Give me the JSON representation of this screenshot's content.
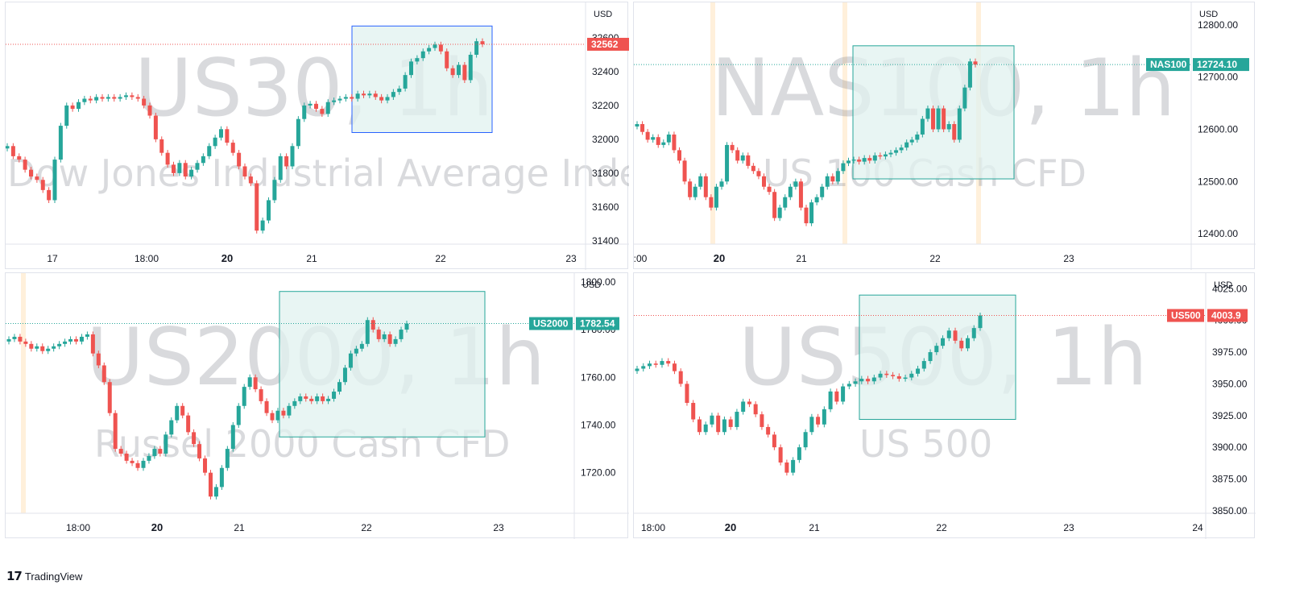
{
  "footer": {
    "logo_icon": "tradingview-logo-icon",
    "brand": "TradingView"
  },
  "colors": {
    "up": "#26a69a",
    "down": "#ef5350",
    "box_fill": "#e0f2ef",
    "box_border": "#26a69a",
    "box_border_alt": "#2962ff",
    "highlight": "#ffe9cc"
  },
  "chart_data": [
    {
      "type": "candlestick",
      "title": "US30, 1h",
      "subtitle": "Dow Jones Industrial Average Index",
      "unit": "USD",
      "ylim": [
        31380,
        32800
      ],
      "y_ticks": [
        "31400",
        "31600",
        "31800",
        "32000",
        "32200",
        "32400",
        "32600"
      ],
      "x_ticks": [
        {
          "label": "17",
          "bold": false
        },
        {
          "label": "18:00",
          "bold": false
        },
        {
          "label": "20",
          "bold": true
        },
        {
          "label": "21",
          "bold": false
        },
        {
          "label": "22",
          "bold": false
        },
        {
          "label": "23",
          "bold": false
        }
      ],
      "last_price": {
        "label": "32562",
        "value": 32562,
        "color": "#ef5350"
      },
      "box": {
        "y_top": 32670,
        "y_bottom": 32040,
        "border": "#2962ff"
      },
      "closes": [
        31960,
        31900,
        31880,
        31820,
        31780,
        31760,
        31700,
        31640,
        31880,
        32080,
        32200,
        32180,
        32220,
        32240,
        32230,
        32250,
        32240,
        32250,
        32240,
        32250,
        32260,
        32250,
        32240,
        32200,
        32140,
        32000,
        31920,
        31850,
        31800,
        31860,
        31780,
        31820,
        31860,
        31900,
        31960,
        32010,
        32060,
        31980,
        31920,
        31840,
        31780,
        31740,
        31460,
        31520,
        31640,
        31760,
        31900,
        31840,
        31960,
        32120,
        32200,
        32210,
        32180,
        32150,
        32220,
        32230,
        32240,
        32250,
        32240,
        32270,
        32260,
        32270,
        32250,
        32230,
        32250,
        32280,
        32300,
        32380,
        32460,
        32480,
        32520,
        32540,
        32560,
        32520,
        32420,
        32380,
        32440,
        32350,
        32500,
        32580,
        32562
      ]
    },
    {
      "type": "candlestick",
      "title": "NAS100, 1h",
      "subtitle": "US 100 Cash CFD",
      "unit": "USD",
      "ylim": [
        12380,
        12840
      ],
      "y_ticks": [
        "12400.00",
        "12500.00",
        "12600.00",
        "12700.00",
        "12800.00"
      ],
      "x_ticks": [
        {
          "label": ":00",
          "bold": false
        },
        {
          "label": "20",
          "bold": true
        },
        {
          "label": "21",
          "bold": false
        },
        {
          "label": "22",
          "bold": false
        },
        {
          "label": "23",
          "bold": false
        }
      ],
      "last_price": {
        "label": "12724.10",
        "value": 12724.1,
        "color": "#26a69a",
        "symbol": "NAS100"
      },
      "box": {
        "y_top": 12760,
        "y_bottom": 12505,
        "border": "#26a69a"
      },
      "highlights": [
        0.125,
        0.33,
        0.55,
        0.54
      ],
      "closes": [
        12610,
        12595,
        12580,
        12585,
        12570,
        12575,
        12590,
        12560,
        12540,
        12500,
        12470,
        12490,
        12510,
        12470,
        12450,
        12490,
        12500,
        12570,
        12560,
        12540,
        12550,
        12530,
        12520,
        12510,
        12490,
        12480,
        12430,
        12450,
        12470,
        12490,
        12500,
        12450,
        12420,
        12460,
        12470,
        12490,
        12510,
        12500,
        12520,
        12535,
        12540,
        12542,
        12538,
        12545,
        12540,
        12550,
        12548,
        12552,
        12555,
        12560,
        12565,
        12575,
        12580,
        12590,
        12620,
        12640,
        12600,
        12640,
        12600,
        12610,
        12580,
        12640,
        12680,
        12730,
        12724
      ]
    },
    {
      "type": "candlestick",
      "title": "US2000, 1h",
      "subtitle": "Russel 2000 Cash CFD",
      "unit": "USD",
      "ylim": [
        1703,
        1803
      ],
      "y_ticks": [
        "1720.00",
        "1740.00",
        "1760.00",
        "1780.00",
        "1800.00"
      ],
      "x_ticks": [
        {
          "label": "18:00",
          "bold": false
        },
        {
          "label": "20",
          "bold": true
        },
        {
          "label": "21",
          "bold": false
        },
        {
          "label": "22",
          "bold": false
        },
        {
          "label": "23",
          "bold": false
        }
      ],
      "last_price": {
        "label": "1782.54",
        "value": 1782.54,
        "color": "#26a69a",
        "symbol": "US2000"
      },
      "box": {
        "y_top": 1796,
        "y_bottom": 1735,
        "border": "#26a69a"
      },
      "highlights": [
        0.03
      ],
      "closes": [
        1776,
        1777,
        1775,
        1774,
        1772,
        1773,
        1771,
        1772,
        1773,
        1774,
        1775,
        1776,
        1775,
        1777,
        1778,
        1770,
        1765,
        1758,
        1745,
        1730,
        1728,
        1725,
        1724,
        1722,
        1725,
        1727,
        1730,
        1728,
        1736,
        1742,
        1748,
        1744,
        1737,
        1732,
        1726,
        1720,
        1710,
        1714,
        1722,
        1730,
        1740,
        1748,
        1756,
        1760,
        1755,
        1750,
        1745,
        1742,
        1746,
        1744,
        1748,
        1750,
        1752,
        1751,
        1750,
        1752,
        1750,
        1751,
        1754,
        1758,
        1764,
        1770,
        1772,
        1774,
        1784,
        1780,
        1776,
        1778,
        1774,
        1776,
        1780,
        1782.54
      ]
    },
    {
      "type": "candlestick",
      "title": "US500, 1h",
      "subtitle": "US 500",
      "unit": "USD",
      "ylim": [
        3848,
        4036
      ],
      "y_ticks": [
        "3850.00",
        "3875.00",
        "3900.00",
        "3925.00",
        "3950.00",
        "3975.00",
        "4000.00",
        "4025.00"
      ],
      "x_ticks": [
        {
          "label": "18:00",
          "bold": false
        },
        {
          "label": "20",
          "bold": true
        },
        {
          "label": "21",
          "bold": false
        },
        {
          "label": "22",
          "bold": false
        },
        {
          "label": "23",
          "bold": false
        },
        {
          "label": "24",
          "bold": false
        }
      ],
      "last_price": {
        "label": "4003.9",
        "value": 4003.9,
        "color": "#ef5350",
        "symbol": "US500"
      },
      "box": {
        "y_top": 4020,
        "y_bottom": 3922,
        "border": "#26a69a"
      },
      "closes": [
        3962,
        3964,
        3966,
        3965,
        3968,
        3966,
        3960,
        3950,
        3935,
        3922,
        3912,
        3918,
        3925,
        3912,
        3922,
        3916,
        3928,
        3936,
        3934,
        3926,
        3916,
        3910,
        3900,
        3888,
        3880,
        3890,
        3900,
        3912,
        3924,
        3918,
        3930,
        3944,
        3936,
        3948,
        3950,
        3952,
        3954,
        3952,
        3955,
        3958,
        3957,
        3956,
        3954,
        3955,
        3958,
        3962,
        3968,
        3975,
        3980,
        3986,
        3992,
        3984,
        3978,
        3986,
        3994,
        4003.9
      ]
    }
  ]
}
